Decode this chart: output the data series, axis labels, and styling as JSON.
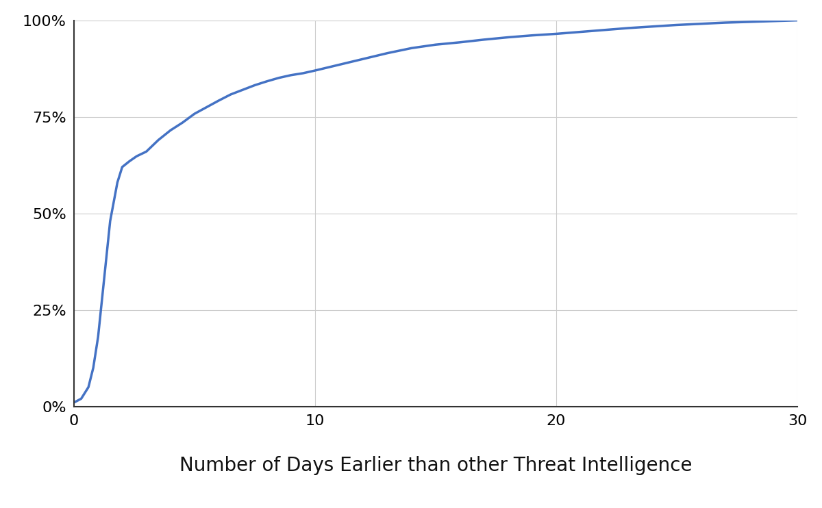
{
  "title": "Number of Days Earlier than other Threat Intelligence",
  "line_color": "#4472C4",
  "line_width": 2.5,
  "background_color": "#ffffff",
  "grid_color": "#cccccc",
  "xlim": [
    0,
    30
  ],
  "ylim": [
    0,
    1.0
  ],
  "xticks": [
    0,
    10,
    20,
    30
  ],
  "yticks": [
    0,
    0.25,
    0.5,
    0.75,
    1.0
  ],
  "ytick_labels": [
    "0%",
    "25%",
    "50%",
    "75%",
    "100%"
  ],
  "x": [
    0.0,
    0.3,
    0.6,
    0.8,
    1.0,
    1.2,
    1.5,
    1.8,
    2.0,
    2.3,
    2.6,
    3.0,
    3.5,
    4.0,
    4.5,
    5.0,
    5.5,
    6.0,
    6.5,
    7.0,
    7.5,
    8.0,
    8.5,
    9.0,
    9.5,
    10.0,
    11.0,
    12.0,
    13.0,
    14.0,
    15.0,
    16.0,
    17.0,
    18.0,
    19.0,
    20.0,
    21.0,
    22.0,
    23.0,
    24.0,
    25.0,
    26.0,
    27.0,
    28.0,
    29.0,
    30.0
  ],
  "y": [
    0.01,
    0.02,
    0.05,
    0.1,
    0.18,
    0.3,
    0.48,
    0.58,
    0.62,
    0.635,
    0.648,
    0.66,
    0.69,
    0.715,
    0.735,
    0.758,
    0.775,
    0.792,
    0.808,
    0.82,
    0.832,
    0.842,
    0.851,
    0.858,
    0.863,
    0.87,
    0.885,
    0.9,
    0.915,
    0.928,
    0.937,
    0.943,
    0.95,
    0.956,
    0.961,
    0.965,
    0.97,
    0.975,
    0.98,
    0.984,
    0.988,
    0.991,
    0.994,
    0.996,
    0.998,
    1.0
  ],
  "tick_fontsize": 16,
  "xlabel_fontsize": 20,
  "spine_color": "#333333"
}
